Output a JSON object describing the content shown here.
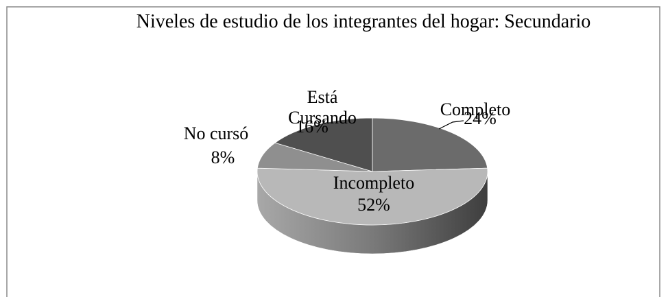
{
  "chart_data": {
    "type": "pie3d",
    "title": "Niveles de estudio de los integrantes del hogar: Secundario",
    "categories": [
      "Completo",
      "Incompleto",
      "No cursó",
      "Está Cursando"
    ],
    "values": [
      24,
      52,
      8,
      16
    ],
    "value_labels": [
      "24%",
      "52%",
      "8%",
      "16%"
    ],
    "colors": [
      "#6b6b6b",
      "#b8b8b8",
      "#8f8f8f",
      "#4f4f4f"
    ]
  }
}
